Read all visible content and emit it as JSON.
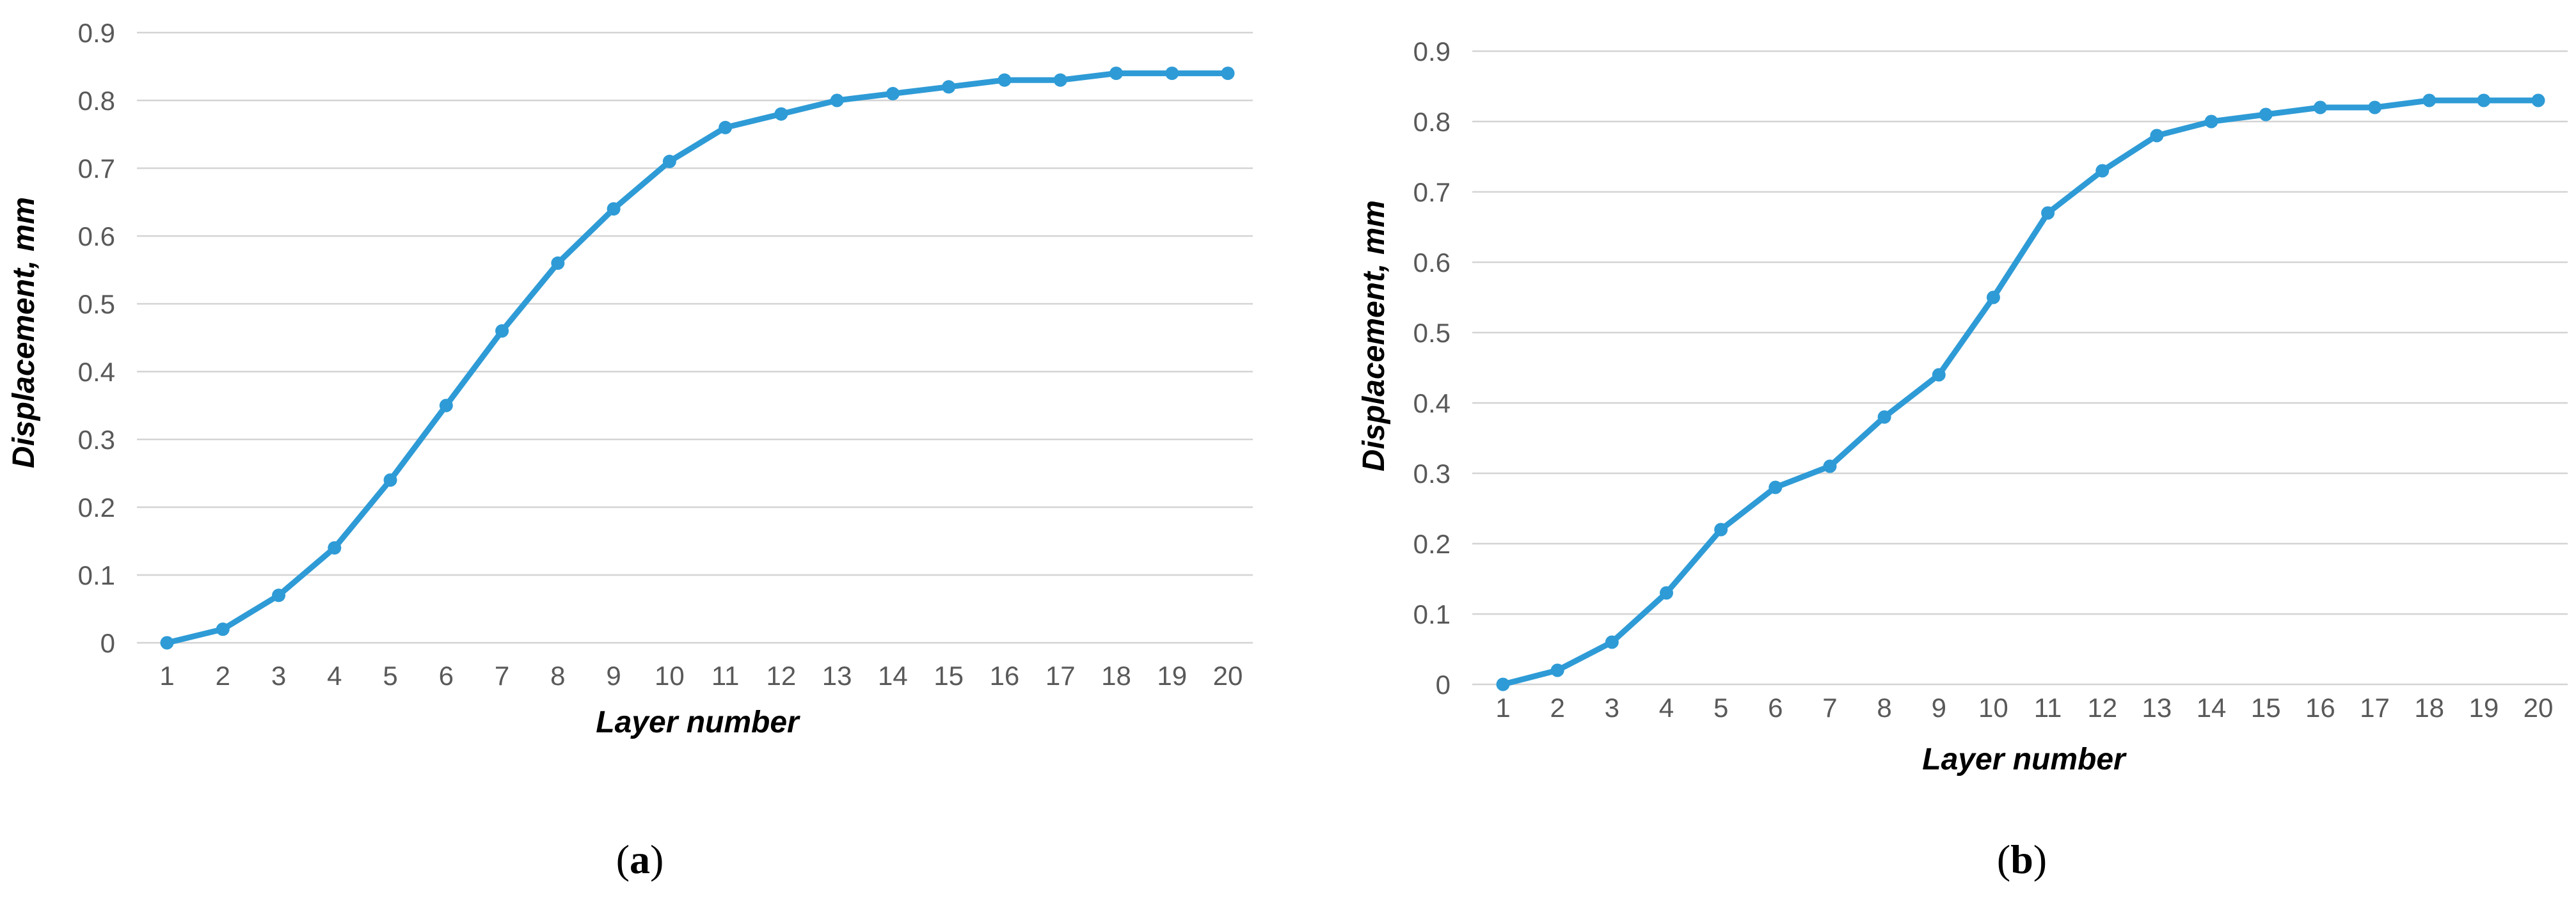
{
  "figure": {
    "background_color": "#ffffff",
    "accent_color": "#2E9BD6",
    "gridline_color": "#D4D4D4",
    "tick_label_color": "#595959",
    "axis_title_color": "#000000"
  },
  "chart_data": [
    {
      "type": "line",
      "panel": "a",
      "caption": {
        "open": "(",
        "letter": "a",
        "close": ")"
      },
      "xlabel": "Layer number",
      "ylabel": "Displacement, mm",
      "x": [
        1,
        2,
        3,
        4,
        5,
        6,
        7,
        8,
        9,
        10,
        11,
        12,
        13,
        14,
        15,
        16,
        17,
        18,
        19,
        20
      ],
      "xtick_labels": [
        "1",
        "2",
        "3",
        "4",
        "5",
        "6",
        "7",
        "8",
        "9",
        "10",
        "11",
        "12",
        "13",
        "14",
        "15",
        "16",
        "17",
        "18",
        "19",
        "20"
      ],
      "values": [
        0.0,
        0.02,
        0.07,
        0.14,
        0.24,
        0.35,
        0.46,
        0.56,
        0.64,
        0.71,
        0.76,
        0.78,
        0.8,
        0.81,
        0.82,
        0.83,
        0.83,
        0.84,
        0.84,
        0.84
      ],
      "ylim": [
        0,
        0.9
      ],
      "ytick_labels": [
        "0",
        "0.1",
        "0.2",
        "0.3",
        "0.4",
        "0.5",
        "0.6",
        "0.7",
        "0.8",
        "0.9"
      ],
      "grid": true,
      "legend": false,
      "marker": "circle"
    },
    {
      "type": "line",
      "panel": "b",
      "caption": {
        "open": "(",
        "letter": "b",
        "close": ")"
      },
      "xlabel": "Layer number",
      "ylabel": "Displacement, mm",
      "x": [
        1,
        2,
        3,
        4,
        5,
        6,
        7,
        8,
        9,
        10,
        11,
        12,
        13,
        14,
        15,
        16,
        17,
        18,
        19,
        20
      ],
      "xtick_labels": [
        "1",
        "2",
        "3",
        "4",
        "5",
        "6",
        "7",
        "8",
        "9",
        "10",
        "11",
        "12",
        "13",
        "14",
        "15",
        "16",
        "17",
        "18",
        "19",
        "20"
      ],
      "values": [
        0.0,
        0.02,
        0.06,
        0.13,
        0.22,
        0.28,
        0.31,
        0.38,
        0.44,
        0.55,
        0.67,
        0.73,
        0.78,
        0.8,
        0.81,
        0.82,
        0.82,
        0.83,
        0.83,
        0.83
      ],
      "ylim": [
        0,
        0.9
      ],
      "ytick_labels": [
        "0",
        "0.1",
        "0.2",
        "0.3",
        "0.4",
        "0.5",
        "0.6",
        "0.7",
        "0.8",
        "0.9"
      ],
      "grid": true,
      "legend": false,
      "marker": "circle"
    }
  ]
}
